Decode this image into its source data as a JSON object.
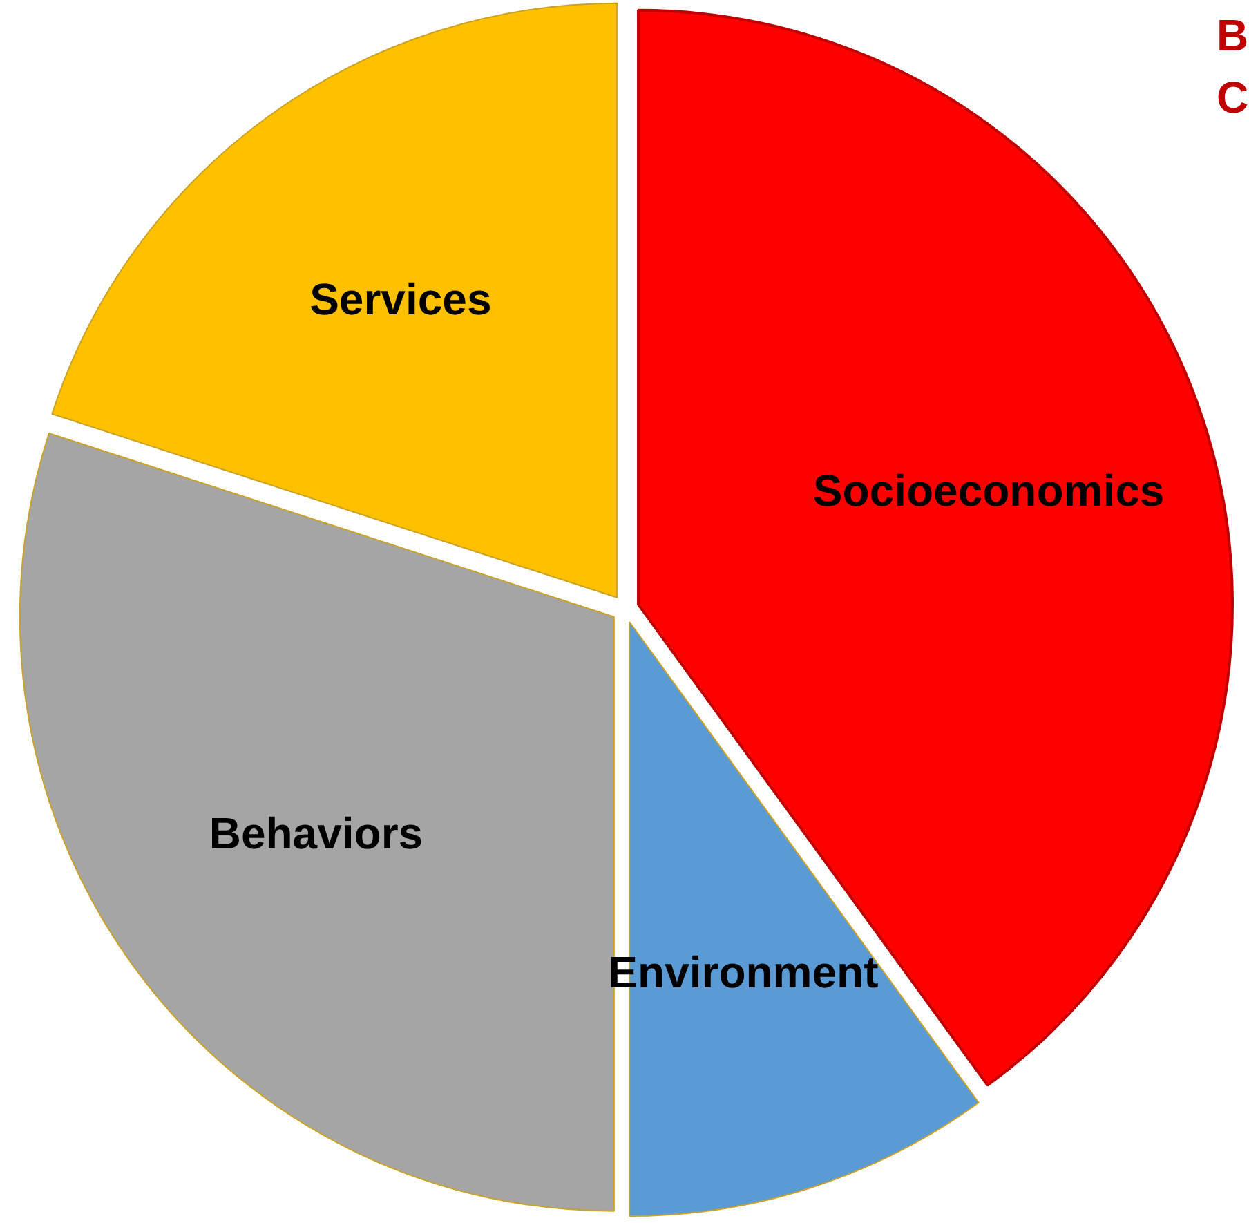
{
  "chart_data": {
    "type": "pie",
    "categories": [
      "Socioeconomics",
      "Environment",
      "Behaviors",
      "Services"
    ],
    "values": [
      40,
      10,
      30,
      20
    ],
    "colors": [
      "#ff0000",
      "#5b9bd5",
      "#a5a5a5",
      "#ffc000"
    ],
    "annotations": [
      "B",
      "C"
    ]
  }
}
